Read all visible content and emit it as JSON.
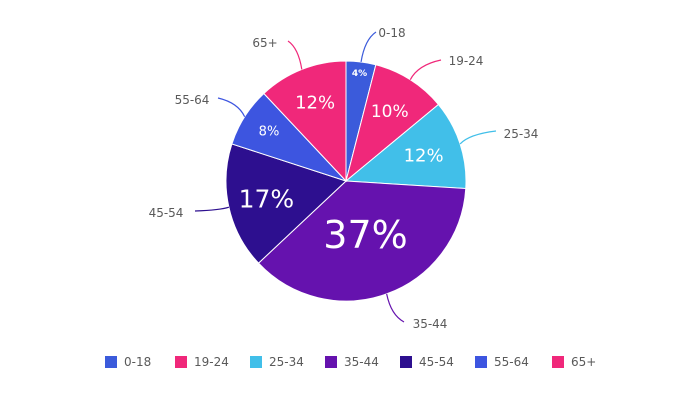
{
  "chart_data": {
    "type": "pie",
    "categories": [
      "0-18",
      "19-24",
      "25-34",
      "35-44",
      "45-54",
      "55-64",
      "65+"
    ],
    "values": [
      4,
      10,
      12,
      37,
      17,
      8,
      12
    ],
    "value_labels": [
      "4%",
      "10%",
      "12%",
      "37%",
      "17%",
      "8%",
      "12%"
    ],
    "colors": [
      "#3b5bdb",
      "#f0287a",
      "#41bfe9",
      "#6512ae",
      "#2d0f8f",
      "#3d55e0",
      "#f0287a"
    ],
    "start_angle_deg": 0,
    "direction": "clockwise",
    "legend_position": "bottom"
  }
}
